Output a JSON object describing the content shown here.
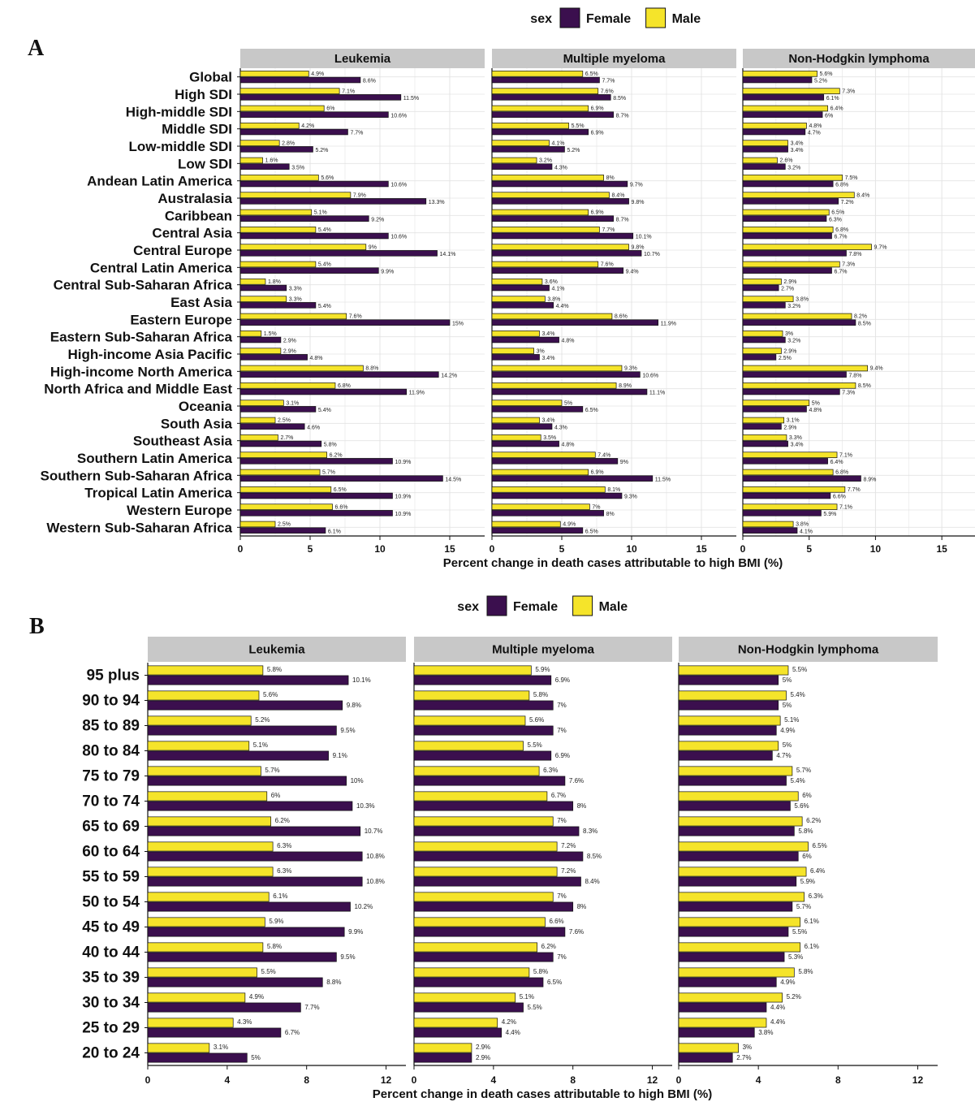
{
  "colors": {
    "female": "#3b0f4e",
    "male": "#f5e42a",
    "strip": "#c8c8c8",
    "grid": "#e4e4e4"
  },
  "chart_data": [
    {
      "panel": "A",
      "type": "bar",
      "orientation": "horizontal",
      "legend": {
        "title": "sex",
        "entries": [
          "Female",
          "Male"
        ],
        "position": "top"
      },
      "facets": [
        "Leukemia",
        "Multiple myeloma",
        "Non-Hodgkin lymphoma"
      ],
      "xlabel": "Percent change in death cases attributable to high BMI (%)",
      "xlim": [
        0,
        17.5
      ],
      "xticks": [
        0,
        5,
        10,
        15
      ],
      "grid": true,
      "categories": [
        "Global",
        "High SDI",
        "High-middle SDI",
        "Middle SDI",
        "Low-middle SDI",
        "Low SDI",
        "Andean Latin America",
        "Australasia",
        "Caribbean",
        "Central Asia",
        "Central Europe",
        "Central Latin America",
        "Central Sub-Saharan Africa",
        "East Asia",
        "Eastern Europe",
        "Eastern Sub-Saharan Africa",
        "High-income Asia Pacific",
        "High-income North America",
        "North Africa and Middle East",
        "Oceania",
        "South Asia",
        "Southeast Asia",
        "Southern Latin America",
        "Southern Sub-Saharan Africa",
        "Tropical Latin America",
        "Western Europe",
        "Western Sub-Saharan Africa"
      ],
      "series": {
        "Leukemia": {
          "Male": [
            4.9,
            7.1,
            6,
            4.2,
            2.8,
            1.6,
            5.6,
            7.9,
            5.1,
            5.4,
            9,
            5.4,
            1.8,
            3.3,
            7.6,
            1.5,
            2.9,
            8.8,
            6.8,
            3.1,
            2.5,
            2.7,
            6.2,
            5.7,
            6.5,
            6.6,
            2.5
          ],
          "Female": [
            8.6,
            11.5,
            10.6,
            7.7,
            5.2,
            3.5,
            10.6,
            13.3,
            9.2,
            10.6,
            14.1,
            9.9,
            3.3,
            5.4,
            15,
            2.9,
            4.8,
            14.2,
            11.9,
            5.4,
            4.6,
            5.8,
            10.9,
            14.5,
            10.9,
            10.9,
            6.1
          ]
        },
        "Multiple myeloma": {
          "Male": [
            6.5,
            7.6,
            6.9,
            5.5,
            4.1,
            3.2,
            8,
            8.4,
            6.9,
            7.7,
            9.8,
            7.6,
            3.6,
            3.8,
            8.6,
            3.4,
            3,
            9.3,
            8.9,
            5,
            3.4,
            3.5,
            7.4,
            6.9,
            8.1,
            7,
            4.9
          ],
          "Female": [
            7.7,
            8.5,
            8.7,
            6.9,
            5.2,
            4.3,
            9.7,
            9.8,
            8.7,
            10.1,
            10.7,
            9.4,
            4.1,
            4.4,
            11.9,
            4.8,
            3.4,
            10.6,
            11.1,
            6.5,
            4.3,
            4.8,
            9,
            11.5,
            9.3,
            8,
            6.5
          ]
        },
        "Non-Hodgkin lymphoma": {
          "Male": [
            5.6,
            7.3,
            6.4,
            4.8,
            3.4,
            2.6,
            7.5,
            8.4,
            6.5,
            6.8,
            9.7,
            7.3,
            2.9,
            3.8,
            8.2,
            3,
            2.9,
            9.4,
            8.5,
            5,
            3.1,
            3.3,
            7.1,
            6.8,
            7.7,
            7.1,
            3.8
          ],
          "Female": [
            5.2,
            6.1,
            6,
            4.7,
            3.4,
            3.2,
            6.8,
            7.2,
            6.3,
            6.7,
            7.8,
            6.7,
            2.7,
            3.2,
            8.5,
            3.2,
            2.5,
            7.8,
            7.3,
            4.8,
            2.9,
            3.4,
            6.4,
            8.9,
            6.6,
            5.9,
            4.1
          ]
        }
      }
    },
    {
      "panel": "B",
      "type": "bar",
      "orientation": "horizontal",
      "legend": {
        "title": "sex",
        "entries": [
          "Female",
          "Male"
        ],
        "position": "top"
      },
      "facets": [
        "Leukemia",
        "Multiple myeloma",
        "Non-Hodgkin lymphoma"
      ],
      "xlabel": "Percent change in death cases attributable to high BMI (%)",
      "xlim": [
        0,
        13
      ],
      "xticks": [
        0,
        4,
        8,
        12
      ],
      "grid": false,
      "categories": [
        "95 plus",
        "90 to 94",
        "85 to 89",
        "80 to 84",
        "75 to 79",
        "70 to 74",
        "65 to 69",
        "60 to 64",
        "55 to 59",
        "50 to 54",
        "45 to 49",
        "40 to 44",
        "35 to 39",
        "30 to 34",
        "25 to 29",
        "20 to 24"
      ],
      "series": {
        "Leukemia": {
          "Male": [
            5.8,
            5.6,
            5.2,
            5.1,
            5.7,
            6,
            6.2,
            6.3,
            6.3,
            6.1,
            5.9,
            5.8,
            5.5,
            4.9,
            4.3,
            3.1
          ],
          "Female": [
            10.1,
            9.8,
            9.5,
            9.1,
            10,
            10.3,
            10.7,
            10.8,
            10.8,
            10.2,
            9.9,
            9.5,
            8.8,
            7.7,
            6.7,
            5
          ]
        },
        "Multiple myeloma": {
          "Male": [
            5.9,
            5.8,
            5.6,
            5.5,
            6.3,
            6.7,
            7,
            7.2,
            7.2,
            7,
            6.6,
            6.2,
            5.8,
            5.1,
            4.2,
            2.9
          ],
          "Female": [
            6.9,
            7,
            7,
            6.9,
            7.6,
            8,
            8.3,
            8.5,
            8.4,
            8,
            7.6,
            7,
            6.5,
            5.5,
            4.4,
            2.9
          ]
        },
        "Non-Hodgkin lymphoma": {
          "Male": [
            5.5,
            5.4,
            5.1,
            5,
            5.7,
            6,
            6.2,
            6.5,
            6.4,
            6.3,
            6.1,
            6.1,
            5.8,
            5.2,
            4.4,
            3
          ],
          "Female": [
            5,
            5,
            4.9,
            4.7,
            5.4,
            5.6,
            5.8,
            6,
            5.9,
            5.7,
            5.5,
            5.3,
            4.9,
            4.4,
            3.8,
            2.7
          ]
        }
      }
    }
  ]
}
